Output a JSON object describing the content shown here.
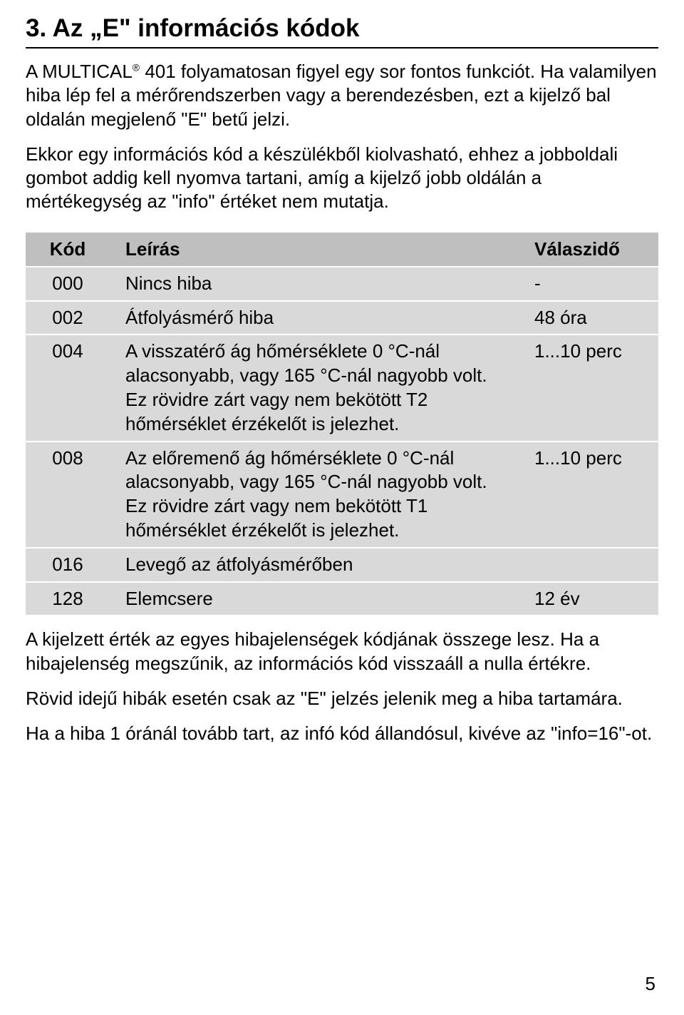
{
  "heading": "3.   Az „E\" információs kódok",
  "intro_paragraph_1_parts": {
    "before": "A MULTICAL",
    "reg": "®",
    "after": " 401 folyamatosan figyel egy sor fontos funkciót. Ha valamilyen hiba lép fel a mérőrendszerben vagy a berendezésben, ezt a kijelző bal oldalán megjelenő \"E\" betű jelzi."
  },
  "intro_paragraph_2": "Ekkor egy információs kód a készülékből kiolvasható, ehhez a jobboldali gombot addig kell nyomva tartani, amíg a kijelző jobb oldálán a mértékegység az \"info\" értéket nem mutatja.",
  "table": {
    "header_bg": "#bfbfbf",
    "row_bg": "#d9d9d9",
    "columns": [
      "Kód",
      "Leírás",
      "Válaszidő"
    ],
    "rows": [
      {
        "code": "000",
        "desc": "Nincs hiba",
        "resp": "-"
      },
      {
        "code": "002",
        "desc": "Átfolyásmérő hiba",
        "resp": "48 óra"
      },
      {
        "code": "004",
        "desc": "A visszatérő ág hőmérséklete 0 °C-nál alacsonyabb, vagy 165 °C-nál nagyobb volt. Ez rövidre zárt vagy nem bekötött T2 hőmérséklet érzékelőt is jelezhet.",
        "resp": "1...10 perc"
      },
      {
        "code": "008",
        "desc": "Az előremenő ág hőmérséklete 0 °C-nál alacsonyabb, vagy 165 °C-nál nagyobb volt. Ez rövidre zárt vagy nem bekötött T1 hőmérséklet érzékelőt is jelezhet.",
        "resp": "1...10 perc"
      },
      {
        "code": "016",
        "desc": "Levegő az átfolyásmérőben",
        "resp": ""
      },
      {
        "code": "128",
        "desc": "Elemcsere",
        "resp": "12 év"
      }
    ]
  },
  "outro_paragraph_1": "A kijelzett érték az egyes hibajelenségek kódjának összege lesz. Ha a hibajelenség megszűnik, az információs kód visszaáll a nulla értékre.",
  "outro_paragraph_2": "Rövid idejű hibák esetén csak az \"E\" jelzés jelenik meg a hiba tartamára.",
  "outro_paragraph_3": "Ha a hiba 1 óránál tovább tart, az infó kód állandósul, kivéve az \"info=16\"-ot.",
  "page_number": "5"
}
